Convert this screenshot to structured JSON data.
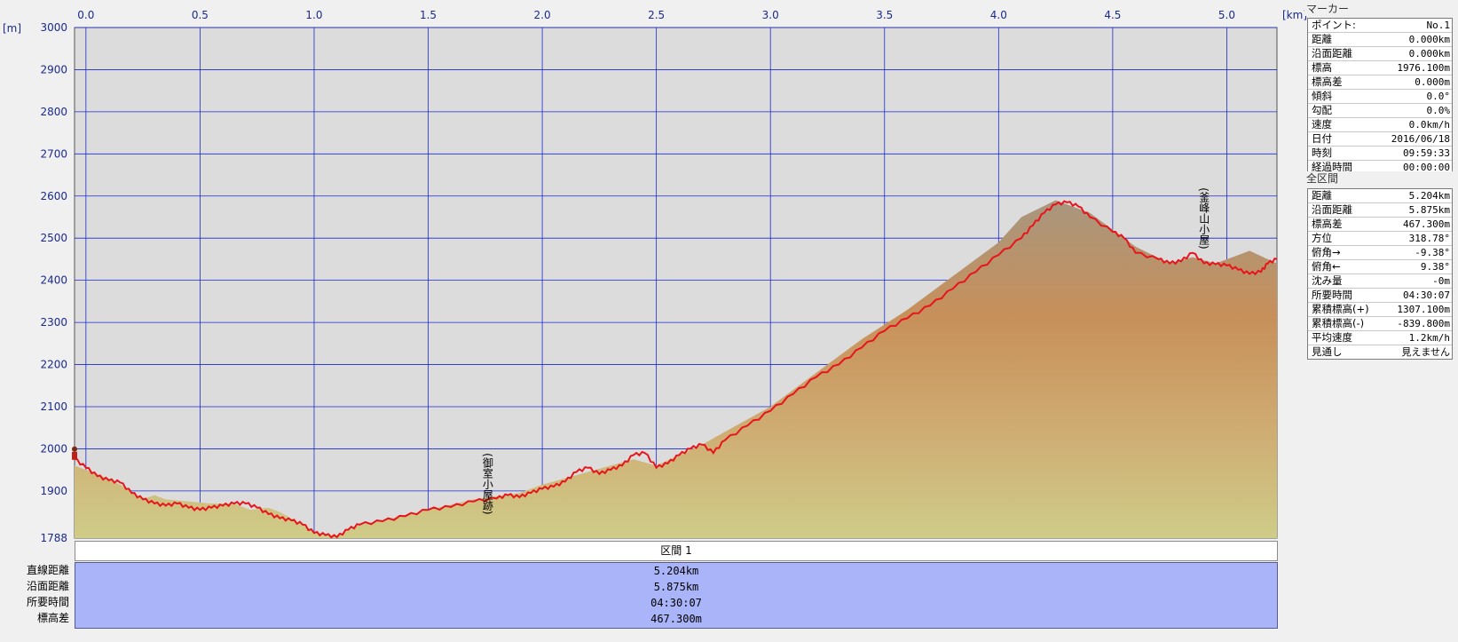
{
  "chart_data": {
    "type": "area",
    "x_unit": "[km]",
    "y_unit": "[m]",
    "xlim": [
      -0.05,
      5.22
    ],
    "ylim": [
      1788,
      3000
    ],
    "x_ticks": [
      "0.0",
      "0.5",
      "1.0",
      "1.5",
      "2.0",
      "2.5",
      "3.0",
      "3.5",
      "4.0",
      "4.5",
      "5.0"
    ],
    "y_ticks": [
      "3000",
      "2900",
      "2800",
      "2700",
      "2600",
      "2500",
      "2400",
      "2300",
      "2200",
      "2100",
      "2000",
      "1900",
      "1788"
    ],
    "grid": true,
    "terrain_profile": [
      [
        -0.05,
        1960
      ],
      [
        0.05,
        1940
      ],
      [
        0.15,
        1915
      ],
      [
        0.25,
        1880
      ],
      [
        0.3,
        1890
      ],
      [
        0.35,
        1880
      ],
      [
        0.45,
        1875
      ],
      [
        0.55,
        1870
      ],
      [
        0.65,
        1870
      ],
      [
        0.72,
        1855
      ],
      [
        0.8,
        1860
      ],
      [
        0.85,
        1850
      ],
      [
        0.95,
        1820
      ],
      [
        1.0,
        1800
      ],
      [
        1.1,
        1795
      ],
      [
        1.2,
        1820
      ],
      [
        1.3,
        1830
      ],
      [
        1.5,
        1855
      ],
      [
        1.7,
        1880
      ],
      [
        1.9,
        1895
      ],
      [
        2.0,
        1915
      ],
      [
        2.1,
        1930
      ],
      [
        2.2,
        1945
      ],
      [
        2.3,
        1960
      ],
      [
        2.4,
        1975
      ],
      [
        2.5,
        1960
      ],
      [
        2.6,
        1985
      ],
      [
        2.7,
        2010
      ],
      [
        2.8,
        2040
      ],
      [
        3.0,
        2100
      ],
      [
        3.2,
        2180
      ],
      [
        3.4,
        2260
      ],
      [
        3.6,
        2330
      ],
      [
        3.8,
        2410
      ],
      [
        4.0,
        2490
      ],
      [
        4.1,
        2550
      ],
      [
        4.25,
        2590
      ],
      [
        4.4,
        2560
      ],
      [
        4.5,
        2520
      ],
      [
        4.6,
        2480
      ],
      [
        4.75,
        2440
      ],
      [
        4.85,
        2455
      ],
      [
        4.95,
        2440
      ],
      [
        5.05,
        2460
      ],
      [
        5.1,
        2470
      ],
      [
        5.22,
        2440
      ]
    ],
    "series": [
      {
        "color": "#e8141c",
        "points": [
          [
            -0.05,
            1976
          ],
          [
            0.0,
            1955
          ],
          [
            0.05,
            1935
          ],
          [
            0.1,
            1925
          ],
          [
            0.15,
            1920
          ],
          [
            0.2,
            1895
          ],
          [
            0.25,
            1880
          ],
          [
            0.3,
            1870
          ],
          [
            0.35,
            1865
          ],
          [
            0.4,
            1870
          ],
          [
            0.45,
            1860
          ],
          [
            0.5,
            1855
          ],
          [
            0.55,
            1860
          ],
          [
            0.6,
            1865
          ],
          [
            0.65,
            1870
          ],
          [
            0.7,
            1870
          ],
          [
            0.75,
            1860
          ],
          [
            0.8,
            1845
          ],
          [
            0.85,
            1835
          ],
          [
            0.9,
            1830
          ],
          [
            0.95,
            1820
          ],
          [
            1.0,
            1800
          ],
          [
            1.05,
            1795
          ],
          [
            1.1,
            1790
          ],
          [
            1.15,
            1808
          ],
          [
            1.2,
            1820
          ],
          [
            1.3,
            1828
          ],
          [
            1.4,
            1840
          ],
          [
            1.5,
            1855
          ],
          [
            1.6,
            1862
          ],
          [
            1.7,
            1875
          ],
          [
            1.8,
            1882
          ],
          [
            1.85,
            1890
          ],
          [
            1.9,
            1885
          ],
          [
            1.95,
            1895
          ],
          [
            2.0,
            1905
          ],
          [
            2.05,
            1910
          ],
          [
            2.1,
            1922
          ],
          [
            2.15,
            1945
          ],
          [
            2.2,
            1955
          ],
          [
            2.25,
            1940
          ],
          [
            2.3,
            1950
          ],
          [
            2.35,
            1960
          ],
          [
            2.4,
            1985
          ],
          [
            2.45,
            1990
          ],
          [
            2.5,
            1955
          ],
          [
            2.55,
            1965
          ],
          [
            2.6,
            1985
          ],
          [
            2.65,
            2000
          ],
          [
            2.7,
            2010
          ],
          [
            2.75,
            1990
          ],
          [
            2.8,
            2020
          ],
          [
            2.9,
            2055
          ],
          [
            3.0,
            2090
          ],
          [
            3.1,
            2130
          ],
          [
            3.2,
            2170
          ],
          [
            3.3,
            2200
          ],
          [
            3.4,
            2240
          ],
          [
            3.5,
            2280
          ],
          [
            3.6,
            2310
          ],
          [
            3.7,
            2340
          ],
          [
            3.8,
            2380
          ],
          [
            3.9,
            2420
          ],
          [
            4.0,
            2460
          ],
          [
            4.1,
            2500
          ],
          [
            4.15,
            2530
          ],
          [
            4.2,
            2560
          ],
          [
            4.25,
            2580
          ],
          [
            4.3,
            2585
          ],
          [
            4.35,
            2575
          ],
          [
            4.4,
            2550
          ],
          [
            4.5,
            2515
          ],
          [
            4.55,
            2500
          ],
          [
            4.6,
            2465
          ],
          [
            4.7,
            2450
          ],
          [
            4.75,
            2440
          ],
          [
            4.8,
            2445
          ],
          [
            4.85,
            2465
          ],
          [
            4.9,
            2440
          ],
          [
            4.95,
            2438
          ],
          [
            5.0,
            2435
          ],
          [
            5.05,
            2425
          ],
          [
            5.1,
            2415
          ],
          [
            5.15,
            2420
          ],
          [
            5.18,
            2440
          ],
          [
            5.22,
            2450
          ]
        ]
      }
    ],
    "annotations": [
      {
        "text": "(御室小屋跡)",
        "x": 1.76,
        "y": 1990
      },
      {
        "text": "(釜峰山小屋)",
        "x": 4.9,
        "y": 2620
      }
    ]
  },
  "section_header": "区間 1",
  "summary": {
    "labels": [
      "直線距離",
      "沿面距離",
      "所要時間",
      "標高差"
    ],
    "values": [
      "5.204km",
      "5.875km",
      "04:30:07",
      "467.300m"
    ]
  },
  "marker_panel": {
    "title": "マーカー",
    "rows": [
      {
        "label": "ポイント:",
        "value": "No.1"
      },
      {
        "label": "距離",
        "value": "0.000km"
      },
      {
        "label": "沿面距離",
        "value": "0.000km"
      },
      {
        "label": "標高",
        "value": "1976.100m"
      },
      {
        "label": "標高差",
        "value": "0.000m"
      },
      {
        "label": "傾斜",
        "value": "0.0°"
      },
      {
        "label": "勾配",
        "value": "0.0%"
      },
      {
        "label": "速度",
        "value": "0.0km/h"
      },
      {
        "label": "日付",
        "value": "2016/06/18"
      },
      {
        "label": "時刻",
        "value": "09:59:33"
      },
      {
        "label": "経過時間",
        "value": "00:00:00"
      }
    ]
  },
  "total_panel": {
    "title": "全区間",
    "rows": [
      {
        "label": "距離",
        "value": "5.204km"
      },
      {
        "label": "沿面距離",
        "value": "5.875km"
      },
      {
        "label": "標高差",
        "value": "467.300m"
      },
      {
        "label": "方位",
        "value": "318.78°"
      },
      {
        "label": "俯角→",
        "value": "-9.38°"
      },
      {
        "label": "俯角←",
        "value": "9.38°"
      },
      {
        "label": "沈み量",
        "value": "-0m"
      },
      {
        "label": "所要時間",
        "value": "04:30:07"
      },
      {
        "label": "累積標高(+)",
        "value": "1307.100m"
      },
      {
        "label": "累積標高(-)",
        "value": "-839.800m"
      },
      {
        "label": "平均速度",
        "value": "1.2km/h"
      },
      {
        "label": "見通し",
        "value": "見えません"
      }
    ]
  },
  "colors": {
    "plot_background": "#dcdcdc",
    "grid": "#1a2ad0",
    "route": "#e8141c",
    "terrain_top": "#a8967e",
    "terrain_mid": "#c8905a",
    "terrain_bottom": "#cfcc88",
    "summary_background": "#aab4f8"
  }
}
